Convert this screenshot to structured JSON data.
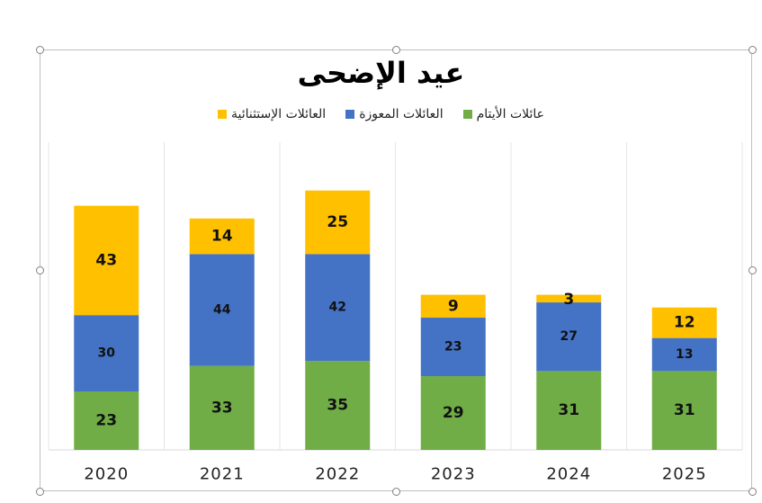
{
  "chart_data": {
    "type": "bar",
    "stacked": true,
    "title": "عيد الإضحى",
    "categories": [
      "2020",
      "2021",
      "2022",
      "2023",
      "2024",
      "2025"
    ],
    "series": [
      {
        "name": "عائلات الأيتام",
        "color": "#70ad47",
        "values": [
          23,
          33,
          35,
          29,
          31,
          31
        ]
      },
      {
        "name": "العائلات المعوزة",
        "color": "#4472c4",
        "values": [
          30,
          44,
          42,
          23,
          27,
          13
        ]
      },
      {
        "name": "العائلات الإستثنائية",
        "color": "#ffc000",
        "values": [
          43,
          14,
          25,
          9,
          3,
          12
        ]
      }
    ],
    "legend_position": "top",
    "gridlines": "vertical",
    "ylim": [
      0,
      121
    ]
  }
}
